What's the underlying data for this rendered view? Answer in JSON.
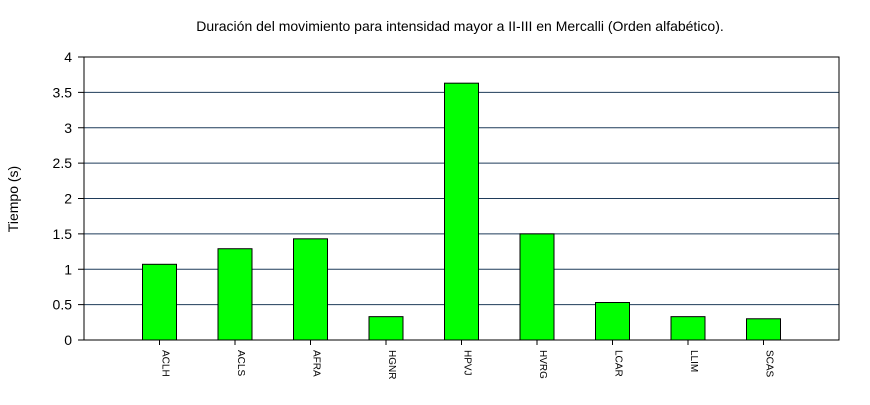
{
  "chart_data": {
    "type": "bar",
    "title": "Duración del movimiento para intensidad mayor a II-III en Mercalli (Orden alfabético).",
    "xlabel": "",
    "ylabel": "Tiempo (s)",
    "ylim": [
      0,
      4
    ],
    "yticks": [
      "0",
      "0.5",
      "1",
      "1.5",
      "2",
      "2.5",
      "3",
      "3.5",
      "4"
    ],
    "grid": true,
    "legend": "none",
    "bar_color": "#00ff00",
    "grid_color": "#1f3b5a",
    "categories": [
      "ACLH",
      "ACLS",
      "AFRA",
      "HGNR",
      "HPVJ",
      "HVRG",
      "LCAR",
      "LLIM",
      "SCAS"
    ],
    "values": [
      1.07,
      1.29,
      1.43,
      0.33,
      3.63,
      1.5,
      0.53,
      0.33,
      0.3
    ]
  }
}
